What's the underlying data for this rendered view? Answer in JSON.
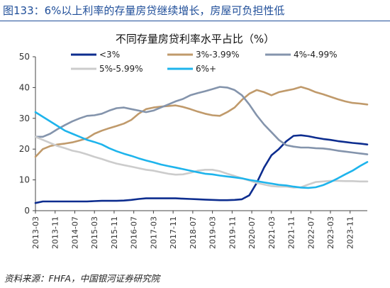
{
  "header": {
    "title": "图133：6%以上利率的存量房贷继续增长，房屋可负担性低"
  },
  "source": "资料来源：FHFA，中国银河证券研究院",
  "colors": {
    "lt3": "#0d2d8f",
    "3to399": "#c09a6b",
    "4to499": "#8494ac",
    "5to599": "#cccccc",
    "gt6": "#1eb4ec",
    "header": "#1f4e99"
  },
  "chart_data": {
    "type": "line",
    "title": "不同存量房贷利率水平占比（%）",
    "xlabel": "",
    "ylabel": "",
    "ylim": [
      0,
      50
    ],
    "yticks": [
      0,
      10,
      20,
      30,
      40,
      50
    ],
    "grid": false,
    "legend_position": "top",
    "xtick_labels": [
      "2013-03",
      "2013-11",
      "2014-07",
      "2015-03",
      "2015-11",
      "2016-07",
      "2017-03",
      "2017-11",
      "2018-07",
      "2019-03",
      "2019-11",
      "2020-07",
      "2021-03",
      "2021-11",
      "2022-07",
      "2023-03",
      "2023-11"
    ],
    "x": [
      "2013-03",
      "2013-06",
      "2013-09",
      "2013-12",
      "2014-03",
      "2014-06",
      "2014-09",
      "2014-12",
      "2015-03",
      "2015-06",
      "2015-09",
      "2015-12",
      "2016-03",
      "2016-06",
      "2016-09",
      "2016-12",
      "2017-03",
      "2017-06",
      "2017-09",
      "2017-12",
      "2018-03",
      "2018-06",
      "2018-09",
      "2018-12",
      "2019-03",
      "2019-06",
      "2019-09",
      "2019-12",
      "2020-03",
      "2020-06",
      "2020-09",
      "2020-12",
      "2021-03",
      "2021-06",
      "2021-09",
      "2021-12",
      "2022-03",
      "2022-06",
      "2022-09",
      "2022-12",
      "2023-03",
      "2023-06",
      "2023-09",
      "2023-12",
      "2024-03",
      "2024-06"
    ],
    "series": [
      {
        "name": "<3%",
        "color_key": "lt3",
        "values": [
          2.5,
          3.0,
          3.0,
          3.0,
          3.0,
          3.0,
          3.0,
          3.0,
          3.1,
          3.2,
          3.2,
          3.2,
          3.3,
          3.5,
          3.8,
          4.0,
          4.0,
          4.0,
          4.0,
          4.0,
          3.9,
          3.8,
          3.7,
          3.6,
          3.5,
          3.4,
          3.4,
          3.5,
          3.7,
          5.0,
          9.0,
          14.0,
          18.0,
          20.0,
          22.5,
          24.3,
          24.5,
          24.2,
          23.7,
          23.3,
          23.0,
          22.6,
          22.3,
          22.0,
          21.8,
          21.5
        ]
      },
      {
        "name": "3%-3.99%",
        "color_key": "3to399",
        "values": [
          17.5,
          20.0,
          21.0,
          21.5,
          21.8,
          22.2,
          22.8,
          23.5,
          25.0,
          26.0,
          26.8,
          27.5,
          28.3,
          29.5,
          31.5,
          33.0,
          33.5,
          33.8,
          34.0,
          34.2,
          33.7,
          33.0,
          32.2,
          31.5,
          31.0,
          30.8,
          32.0,
          33.5,
          36.0,
          38.0,
          39.2,
          38.5,
          37.5,
          38.5,
          39.0,
          39.5,
          40.2,
          39.5,
          38.5,
          37.8,
          37.0,
          36.2,
          35.5,
          35.0,
          34.8,
          34.5
        ]
      },
      {
        "name": "4%-4.99%",
        "color_key": "4to499",
        "values": [
          24.0,
          24.0,
          25.0,
          26.5,
          27.8,
          29.0,
          30.0,
          30.8,
          31.0,
          31.5,
          32.5,
          33.3,
          33.5,
          33.0,
          32.5,
          32.0,
          32.5,
          33.5,
          34.5,
          35.5,
          36.3,
          37.5,
          38.2,
          38.8,
          39.5,
          40.2,
          40.0,
          39.2,
          37.5,
          34.5,
          31.0,
          28.0,
          25.5,
          23.0,
          21.3,
          20.8,
          20.5,
          20.5,
          20.3,
          20.2,
          19.9,
          19.5,
          19.2,
          18.9,
          18.6,
          18.3
        ]
      },
      {
        "name": "5%-5.99%",
        "color_key": "5to599",
        "values": [
          24.0,
          23.0,
          22.0,
          21.0,
          20.3,
          19.5,
          19.0,
          18.3,
          17.5,
          16.8,
          16.0,
          15.3,
          14.8,
          14.3,
          13.8,
          13.3,
          13.0,
          12.5,
          12.0,
          11.7,
          11.8,
          12.3,
          13.0,
          13.3,
          13.3,
          12.8,
          12.0,
          11.3,
          10.5,
          9.8,
          9.0,
          8.5,
          8.0,
          7.8,
          7.8,
          7.5,
          7.6,
          8.5,
          9.3,
          9.5,
          9.7,
          9.7,
          9.6,
          9.6,
          9.5,
          9.5
        ]
      },
      {
        "name": "6%+",
        "color_key": "gt6",
        "values": [
          32.0,
          30.5,
          29.0,
          27.5,
          26.0,
          25.0,
          24.0,
          23.0,
          22.3,
          21.5,
          20.3,
          19.3,
          18.5,
          17.8,
          17.0,
          16.3,
          15.7,
          15.0,
          14.5,
          14.0,
          13.5,
          13.0,
          12.5,
          12.0,
          11.8,
          11.4,
          11.1,
          10.8,
          10.5,
          10.0,
          9.6,
          9.2,
          8.8,
          8.4,
          8.2,
          7.8,
          7.5,
          7.4,
          7.6,
          8.3,
          9.3,
          10.5,
          11.8,
          13.0,
          14.5,
          15.8
        ]
      }
    ]
  }
}
